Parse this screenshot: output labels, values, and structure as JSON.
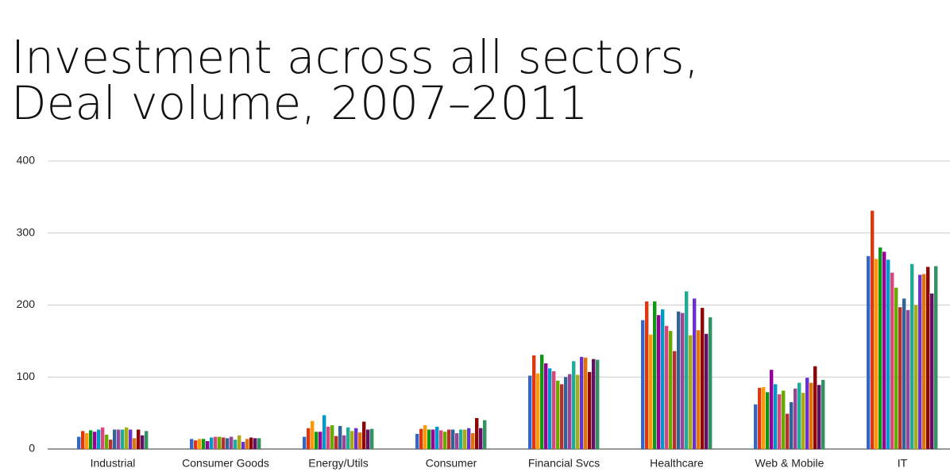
{
  "chart_data": {
    "type": "bar",
    "title": [
      "Investment across all sectors,",
      "Deal volume, 2007–2011"
    ],
    "categories": [
      "Industrial",
      "Consumer Goods",
      "Energy/Utils",
      "Consumer",
      "Financial Svcs",
      "Healthcare",
      "Web & Mobile",
      "IT"
    ],
    "ylim": [
      0,
      400
    ],
    "yticks": [
      0,
      100,
      200,
      300,
      400
    ],
    "grid": true,
    "series": [
      {
        "color": "#3366cc",
        "values": [
          17,
          14,
          17,
          21,
          102,
          179,
          62,
          268
        ]
      },
      {
        "color": "#dc3912",
        "values": [
          25,
          12,
          29,
          28,
          130,
          205,
          85,
          331
        ]
      },
      {
        "color": "#ff9900",
        "values": [
          22,
          14,
          39,
          33,
          105,
          159,
          86,
          264
        ]
      },
      {
        "color": "#109618",
        "values": [
          26,
          14,
          24,
          27,
          131,
          205,
          79,
          280
        ]
      },
      {
        "color": "#990099",
        "values": [
          24,
          11,
          24,
          27,
          119,
          186,
          110,
          274
        ]
      },
      {
        "color": "#0099c6",
        "values": [
          27,
          16,
          47,
          31,
          112,
          194,
          90,
          263
        ]
      },
      {
        "color": "#dd4477",
        "values": [
          30,
          17,
          31,
          26,
          108,
          171,
          76,
          245
        ]
      },
      {
        "color": "#66aa00",
        "values": [
          20,
          17,
          33,
          24,
          95,
          164,
          81,
          224
        ]
      },
      {
        "color": "#b82e2e",
        "values": [
          13,
          16,
          18,
          27,
          90,
          136,
          49,
          197
        ]
      },
      {
        "color": "#316395",
        "values": [
          27,
          15,
          32,
          27,
          100,
          191,
          65,
          209
        ]
      },
      {
        "color": "#994499",
        "values": [
          27,
          17,
          19,
          22,
          104,
          189,
          84,
          193
        ]
      },
      {
        "color": "#22aa99",
        "values": [
          27,
          13,
          30,
          27,
          122,
          219,
          92,
          257
        ]
      },
      {
        "color": "#aaaa11",
        "values": [
          30,
          19,
          25,
          27,
          103,
          158,
          78,
          200
        ]
      },
      {
        "color": "#6633cc",
        "values": [
          27,
          10,
          29,
          29,
          128,
          209,
          99,
          242
        ]
      },
      {
        "color": "#e67300",
        "values": [
          15,
          14,
          23,
          22,
          127,
          165,
          92,
          243
        ]
      },
      {
        "color": "#8b0707",
        "values": [
          27,
          16,
          38,
          43,
          107,
          196,
          115,
          253
        ]
      },
      {
        "color": "#651067",
        "values": [
          19,
          15,
          27,
          29,
          125,
          160,
          89,
          216
        ]
      },
      {
        "color": "#329262",
        "values": [
          25,
          15,
          28,
          40,
          124,
          183,
          96,
          254
        ]
      }
    ]
  }
}
